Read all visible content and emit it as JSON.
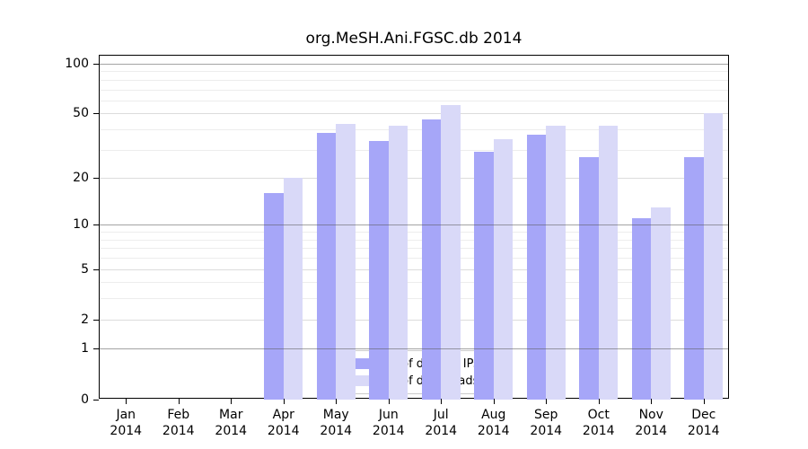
{
  "title": "org.MeSH.Ani.FGSC.db 2014",
  "chart_data": {
    "type": "bar",
    "title": "org.MeSH.Ani.FGSC.db 2014",
    "scale": "log1p",
    "categories": [
      "Jan",
      "Feb",
      "Mar",
      "Apr",
      "May",
      "Jun",
      "Jul",
      "Aug",
      "Sep",
      "Oct",
      "Nov",
      "Dec"
    ],
    "x_year": "2014",
    "series": [
      {
        "name": "Nb of distinct IPs",
        "color": "#a6a6f8",
        "values": [
          0,
          0,
          0,
          16,
          38,
          34,
          46,
          29,
          37,
          27,
          11,
          27
        ]
      },
      {
        "name": "Nb of downloads",
        "color": "#d9d9f8",
        "values": [
          0,
          0,
          0,
          20,
          43,
          42,
          56,
          35,
          42,
          42,
          13,
          50
        ]
      }
    ],
    "y_ticks": [
      0,
      1,
      2,
      5,
      10,
      20,
      50,
      100
    ],
    "ylim": [
      0,
      113
    ],
    "grid": "on",
    "legend_position": "bottom-center-inside",
    "gridlines": {
      "major": [
        1,
        10,
        100
      ],
      "labeled_minor": [
        2,
        5,
        20,
        50
      ],
      "minor": [
        3,
        4,
        6,
        7,
        8,
        9,
        30,
        40,
        60,
        70,
        80,
        90
      ]
    },
    "colors": {
      "major_grid": "rgba(90,90,90,0.55)",
      "labeled_minor_grid": "#dcdcdc",
      "minor_grid": "#ededed",
      "axis": "#000000",
      "background": "#ffffff"
    }
  }
}
